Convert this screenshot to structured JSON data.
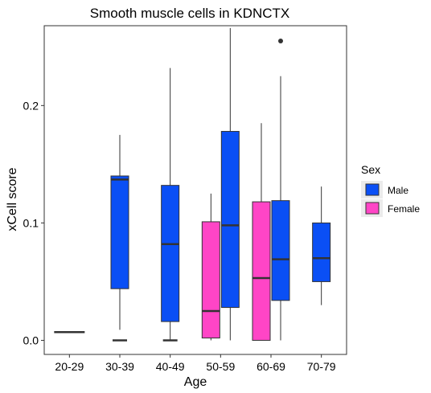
{
  "chart_data": {
    "type": "box",
    "title": "Smooth muscle cells in KDNCTX",
    "xlabel": "Age",
    "ylabel": "xCell score",
    "categories": [
      "20-29",
      "30-39",
      "40-49",
      "50-59",
      "60-69",
      "70-79"
    ],
    "ylim": [
      -0.012,
      0.268
    ],
    "yticks": [
      0.0,
      0.1,
      0.2
    ],
    "ytick_labels": [
      "0.0",
      "0.1",
      "0.2"
    ],
    "grid": false,
    "legend": {
      "title": "Sex",
      "position": "right",
      "entries": [
        {
          "label": "Male",
          "color": "#0a4ff5"
        },
        {
          "label": "Female",
          "color": "#ff45c6"
        }
      ]
    },
    "series": [
      {
        "name": "Male",
        "color": "#0a4ff5",
        "boxes": [
          {
            "category": "30-39",
            "whisker_low": 0.009,
            "q1": 0.044,
            "median": 0.137,
            "q3": 0.14,
            "whisker_high": 0.175,
            "outliers": []
          },
          {
            "category": "40-49",
            "whisker_low": 0.0,
            "q1": 0.016,
            "median": 0.082,
            "q3": 0.132,
            "whisker_high": 0.232,
            "outliers": []
          },
          {
            "category": "50-59",
            "whisker_low": 0.0,
            "q1": 0.028,
            "median": 0.098,
            "q3": 0.178,
            "whisker_high": 0.266,
            "outliers": []
          },
          {
            "category": "60-69",
            "whisker_low": 0.0,
            "q1": 0.034,
            "median": 0.069,
            "q3": 0.119,
            "whisker_high": 0.225,
            "outliers": [
              0.255
            ]
          },
          {
            "category": "70-79",
            "whisker_low": 0.03,
            "q1": 0.05,
            "median": 0.07,
            "q3": 0.1,
            "whisker_high": 0.131,
            "outliers": []
          }
        ]
      },
      {
        "name": "Female",
        "color": "#ff45c6",
        "boxes": [
          {
            "category": "50-59",
            "whisker_low": 0.0,
            "q1": 0.002,
            "median": 0.025,
            "q3": 0.101,
            "whisker_high": 0.125,
            "outliers": []
          },
          {
            "category": "60-69",
            "whisker_low": 0.0,
            "q1": 0.0,
            "median": 0.053,
            "q3": 0.118,
            "whisker_high": 0.185,
            "outliers": []
          }
        ]
      }
    ],
    "flat_boxes": [
      {
        "category": "20-29",
        "value": 0.007
      },
      {
        "category": "30-39",
        "value": 0.0
      },
      {
        "category": "40-49",
        "value": 0.0
      }
    ]
  }
}
